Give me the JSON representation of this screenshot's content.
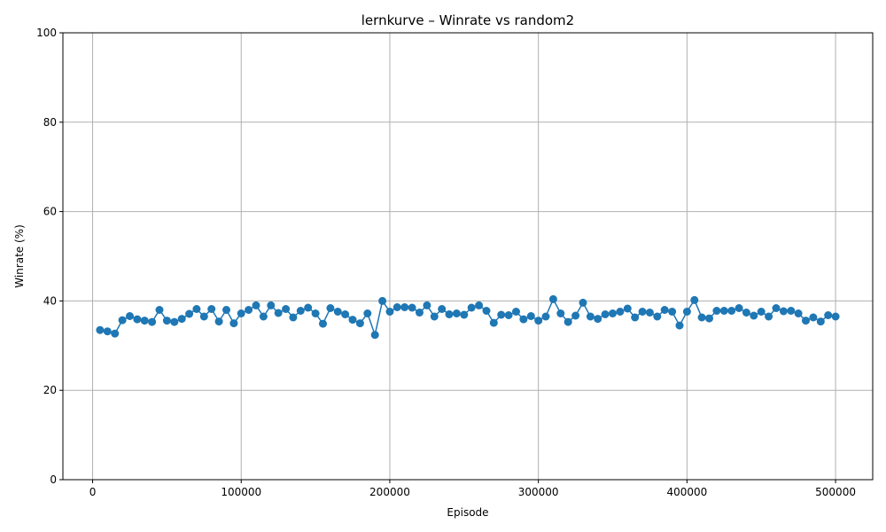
{
  "chart_data": {
    "type": "line",
    "title": "lernkurve – Winrate vs random2",
    "xlabel": "Episode",
    "ylabel": "Winrate (%)",
    "xlim": [
      -20000,
      525000
    ],
    "ylim": [
      0,
      100
    ],
    "xticks": [
      0,
      100000,
      200000,
      300000,
      400000,
      500000
    ],
    "xtick_labels": [
      "0",
      "100000",
      "200000",
      "300000",
      "400000",
      "500000"
    ],
    "yticks": [
      0,
      20,
      40,
      60,
      80,
      100
    ],
    "ytick_labels": [
      "0",
      "20",
      "40",
      "60",
      "80",
      "100"
    ],
    "grid": true,
    "color": "#1f77b4",
    "marker": "circle",
    "series": [
      {
        "x": [
          5000,
          10000,
          15000,
          20000,
          25000,
          30000,
          35000,
          40000,
          45000,
          50000,
          55000,
          60000,
          65000,
          70000,
          75000,
          80000,
          85000,
          90000,
          95000,
          100000,
          105000,
          110000,
          115000,
          120000,
          125000,
          130000,
          135000,
          140000,
          145000,
          150000,
          155000,
          160000,
          165000,
          170000,
          175000,
          180000,
          185000,
          190000,
          195000,
          200000,
          205000,
          210000,
          215000,
          220000,
          225000,
          230000,
          235000,
          240000,
          245000,
          250000,
          255000,
          260000,
          265000,
          270000,
          275000,
          280000,
          285000,
          290000,
          295000,
          300000,
          305000,
          310000,
          315000,
          320000,
          325000,
          330000,
          335000,
          340000,
          345000,
          350000,
          355000,
          360000,
          365000,
          370000,
          375000,
          380000,
          385000,
          390000,
          395000,
          400000,
          405000,
          410000,
          415000,
          420000,
          425000,
          430000,
          435000,
          440000,
          445000,
          450000,
          455000,
          460000,
          465000,
          470000,
          475000,
          480000,
          485000,
          490000,
          495000,
          500000
        ],
        "values": [
          33.5,
          33.2,
          32.7,
          35.7,
          36.6,
          35.9,
          35.6,
          35.3,
          38.0,
          35.6,
          35.3,
          36.0,
          37.1,
          38.2,
          36.5,
          38.2,
          35.4,
          38.0,
          35.0,
          37.2,
          38.0,
          39.0,
          36.5,
          39.0,
          37.3,
          38.2,
          36.3,
          37.8,
          38.5,
          37.2,
          34.9,
          38.4,
          37.6,
          37.0,
          35.8,
          35.0,
          37.2,
          32.4,
          40.0,
          37.6,
          38.6,
          38.6,
          38.5,
          37.4,
          39.0,
          36.5,
          38.2,
          37.0,
          37.2,
          36.9,
          38.5,
          39.0,
          37.8,
          35.1,
          36.9,
          36.8,
          37.6,
          35.9,
          36.6,
          35.6,
          36.5,
          40.4,
          37.2,
          35.3,
          36.7,
          39.6,
          36.5,
          36.0,
          37.0,
          37.2,
          37.6,
          38.3,
          36.3,
          37.6,
          37.4,
          36.5,
          38.0,
          37.6,
          34.5,
          37.6,
          40.2,
          36.3,
          36.1,
          37.8,
          37.8,
          37.8,
          38.4,
          37.4,
          36.7,
          37.6,
          36.5,
          38.4,
          37.7,
          37.8,
          37.2,
          35.6,
          36.3,
          35.4,
          36.8,
          36.5
        ]
      }
    ]
  }
}
